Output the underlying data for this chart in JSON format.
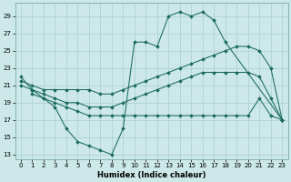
{
  "xlabel": "Humidex (Indice chaleur)",
  "background_color": "#cce8e8",
  "line_color": "#1a6b5a",
  "grid_color": "#aacfcf",
  "xlim": [
    -0.5,
    23.5
  ],
  "ylim": [
    12.5,
    30.5
  ],
  "yticks": [
    13,
    15,
    17,
    19,
    21,
    23,
    25,
    27,
    29
  ],
  "xticks": [
    0,
    1,
    2,
    3,
    4,
    5,
    6,
    7,
    8,
    9,
    10,
    11,
    12,
    13,
    14,
    15,
    16,
    17,
    18,
    19,
    20,
    21,
    22,
    23
  ],
  "line1_x": [
    0,
    1,
    2,
    3,
    4,
    5,
    6,
    7,
    8,
    9,
    10,
    11,
    12,
    13,
    14,
    15,
    16,
    17,
    18,
    23
  ],
  "line1_y": [
    22.0,
    20.5,
    19.5,
    18.5,
    16.0,
    14.5,
    14.0,
    13.5,
    13.0,
    16.0,
    26.0,
    26.0,
    25.5,
    29.0,
    29.5,
    29.0,
    29.5,
    28.5,
    26.0,
    17.0
  ],
  "line2_x": [
    0,
    1,
    2,
    3,
    4,
    5,
    6,
    7,
    8,
    9,
    10,
    11,
    12,
    13,
    14,
    15,
    16,
    17,
    18,
    19,
    20,
    21,
    22,
    23
  ],
  "line2_y": [
    21.5,
    21.0,
    20.5,
    20.5,
    20.5,
    20.5,
    20.5,
    20.0,
    20.0,
    20.5,
    21.0,
    21.5,
    22.0,
    22.5,
    23.0,
    23.5,
    24.0,
    24.5,
    25.0,
    25.5,
    25.5,
    25.0,
    23.0,
    17.0
  ],
  "line3_x": [
    0,
    1,
    2,
    3,
    4,
    5,
    6,
    7,
    8,
    9,
    10,
    11,
    12,
    13,
    14,
    15,
    16,
    17,
    18,
    19,
    20,
    21,
    22,
    23
  ],
  "line3_y": [
    21.0,
    20.5,
    20.0,
    19.5,
    19.0,
    19.0,
    18.5,
    18.5,
    18.5,
    19.0,
    19.5,
    20.0,
    20.5,
    21.0,
    21.5,
    22.0,
    22.5,
    22.5,
    22.5,
    22.5,
    22.5,
    22.0,
    19.5,
    17.0
  ],
  "line4_x": [
    1,
    2,
    3,
    4,
    5,
    6,
    7,
    8,
    9,
    10,
    11,
    12,
    13,
    14,
    15,
    16,
    17,
    18,
    19,
    20,
    21,
    22,
    23
  ],
  "line4_y": [
    20.0,
    19.5,
    19.0,
    18.5,
    18.0,
    17.5,
    17.5,
    17.5,
    17.5,
    17.5,
    17.5,
    17.5,
    17.5,
    17.5,
    17.5,
    17.5,
    17.5,
    17.5,
    17.5,
    17.5,
    19.5,
    17.5,
    17.0
  ]
}
